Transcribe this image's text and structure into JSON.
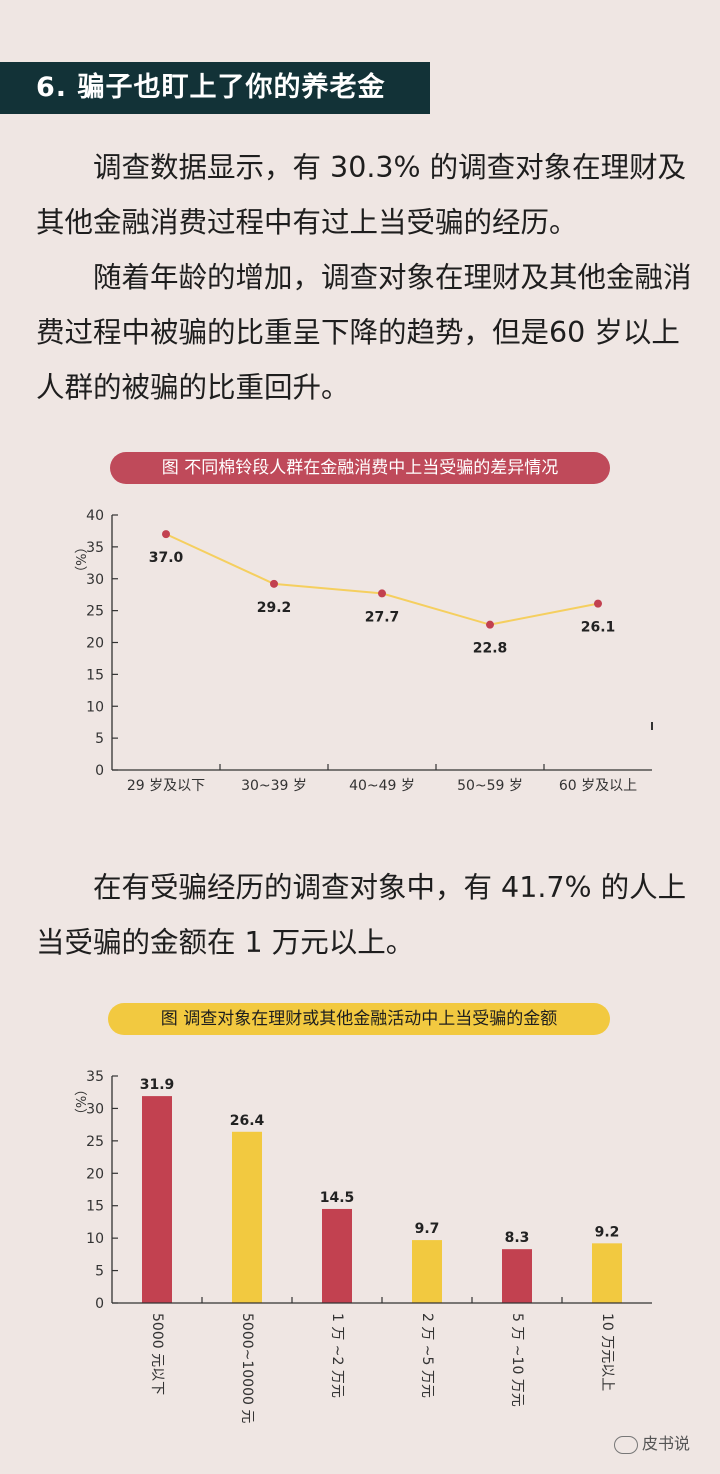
{
  "header": {
    "title": "6. 骗子也盯上了你的养老金"
  },
  "paragraphs": {
    "p1": "调查数据显示，有 30.3% 的调查对象在理财及其他金融消费过程中有过上当受骗的经历。",
    "p2": "随着年龄的增加，调查对象在理财及其他金融消费过程中被骗的比重呈下降的趋势，但是60 岁以上人群的被骗的比重回升。",
    "p3": "在有受骗经历的调查对象中，有 41.7% 的人上当受骗的金额在 1 万元以上。"
  },
  "chart_titles": {
    "line": "图 不同棉铃段人群在金融消费中上当受骗的差异情况",
    "bar": "图 调查对象在理财或其他金融活动中上当受骗的金额"
  },
  "chart_data": [
    {
      "type": "line",
      "title": "图 不同棉铃段人群在金融消费中上当受骗的差异情况",
      "ylabel": "（%）",
      "categories": [
        "29 岁及以下",
        "30~39 岁",
        "40~49 岁",
        "50~59 岁",
        "60 岁及以上"
      ],
      "values": [
        37.0,
        29.2,
        27.7,
        22.8,
        26.1
      ],
      "data_labels": [
        "37.0",
        "29.2",
        "27.7",
        "22.8",
        "26.1"
      ],
      "ylim": [
        0,
        40
      ],
      "yticks": [
        "0",
        "5",
        "10",
        "15",
        "20",
        "25",
        "30",
        "35",
        "40"
      ],
      "line_color": "#f5cf5f",
      "marker_color": "#c24150",
      "grid": false,
      "legend": "none"
    },
    {
      "type": "bar",
      "title": "图 调查对象在理财或其他金融活动中上当受骗的金额",
      "ylabel": "（%）",
      "categories": [
        "5000 元以下",
        "5000~10000 元",
        "1 万 ~2 万元",
        "2 万 ~5 万元",
        "5 万 ~10 万元",
        "10 万元以上"
      ],
      "values": [
        31.9,
        26.4,
        14.5,
        9.7,
        8.3,
        9.2
      ],
      "data_labels": [
        "31.9",
        "26.4",
        "14.5",
        "9.7",
        "8.3",
        "9.2"
      ],
      "ylim": [
        0,
        35
      ],
      "yticks": [
        "0",
        "5",
        "10",
        "15",
        "20",
        "25",
        "30",
        "35"
      ],
      "bar_colors": [
        "#c24150",
        "#f2c940",
        "#c24150",
        "#f2c940",
        "#c24150",
        "#f2c940"
      ],
      "grid": false,
      "legend": "none"
    }
  ],
  "watermark": {
    "text": "皮书说",
    "icon": "wechat-icon"
  }
}
